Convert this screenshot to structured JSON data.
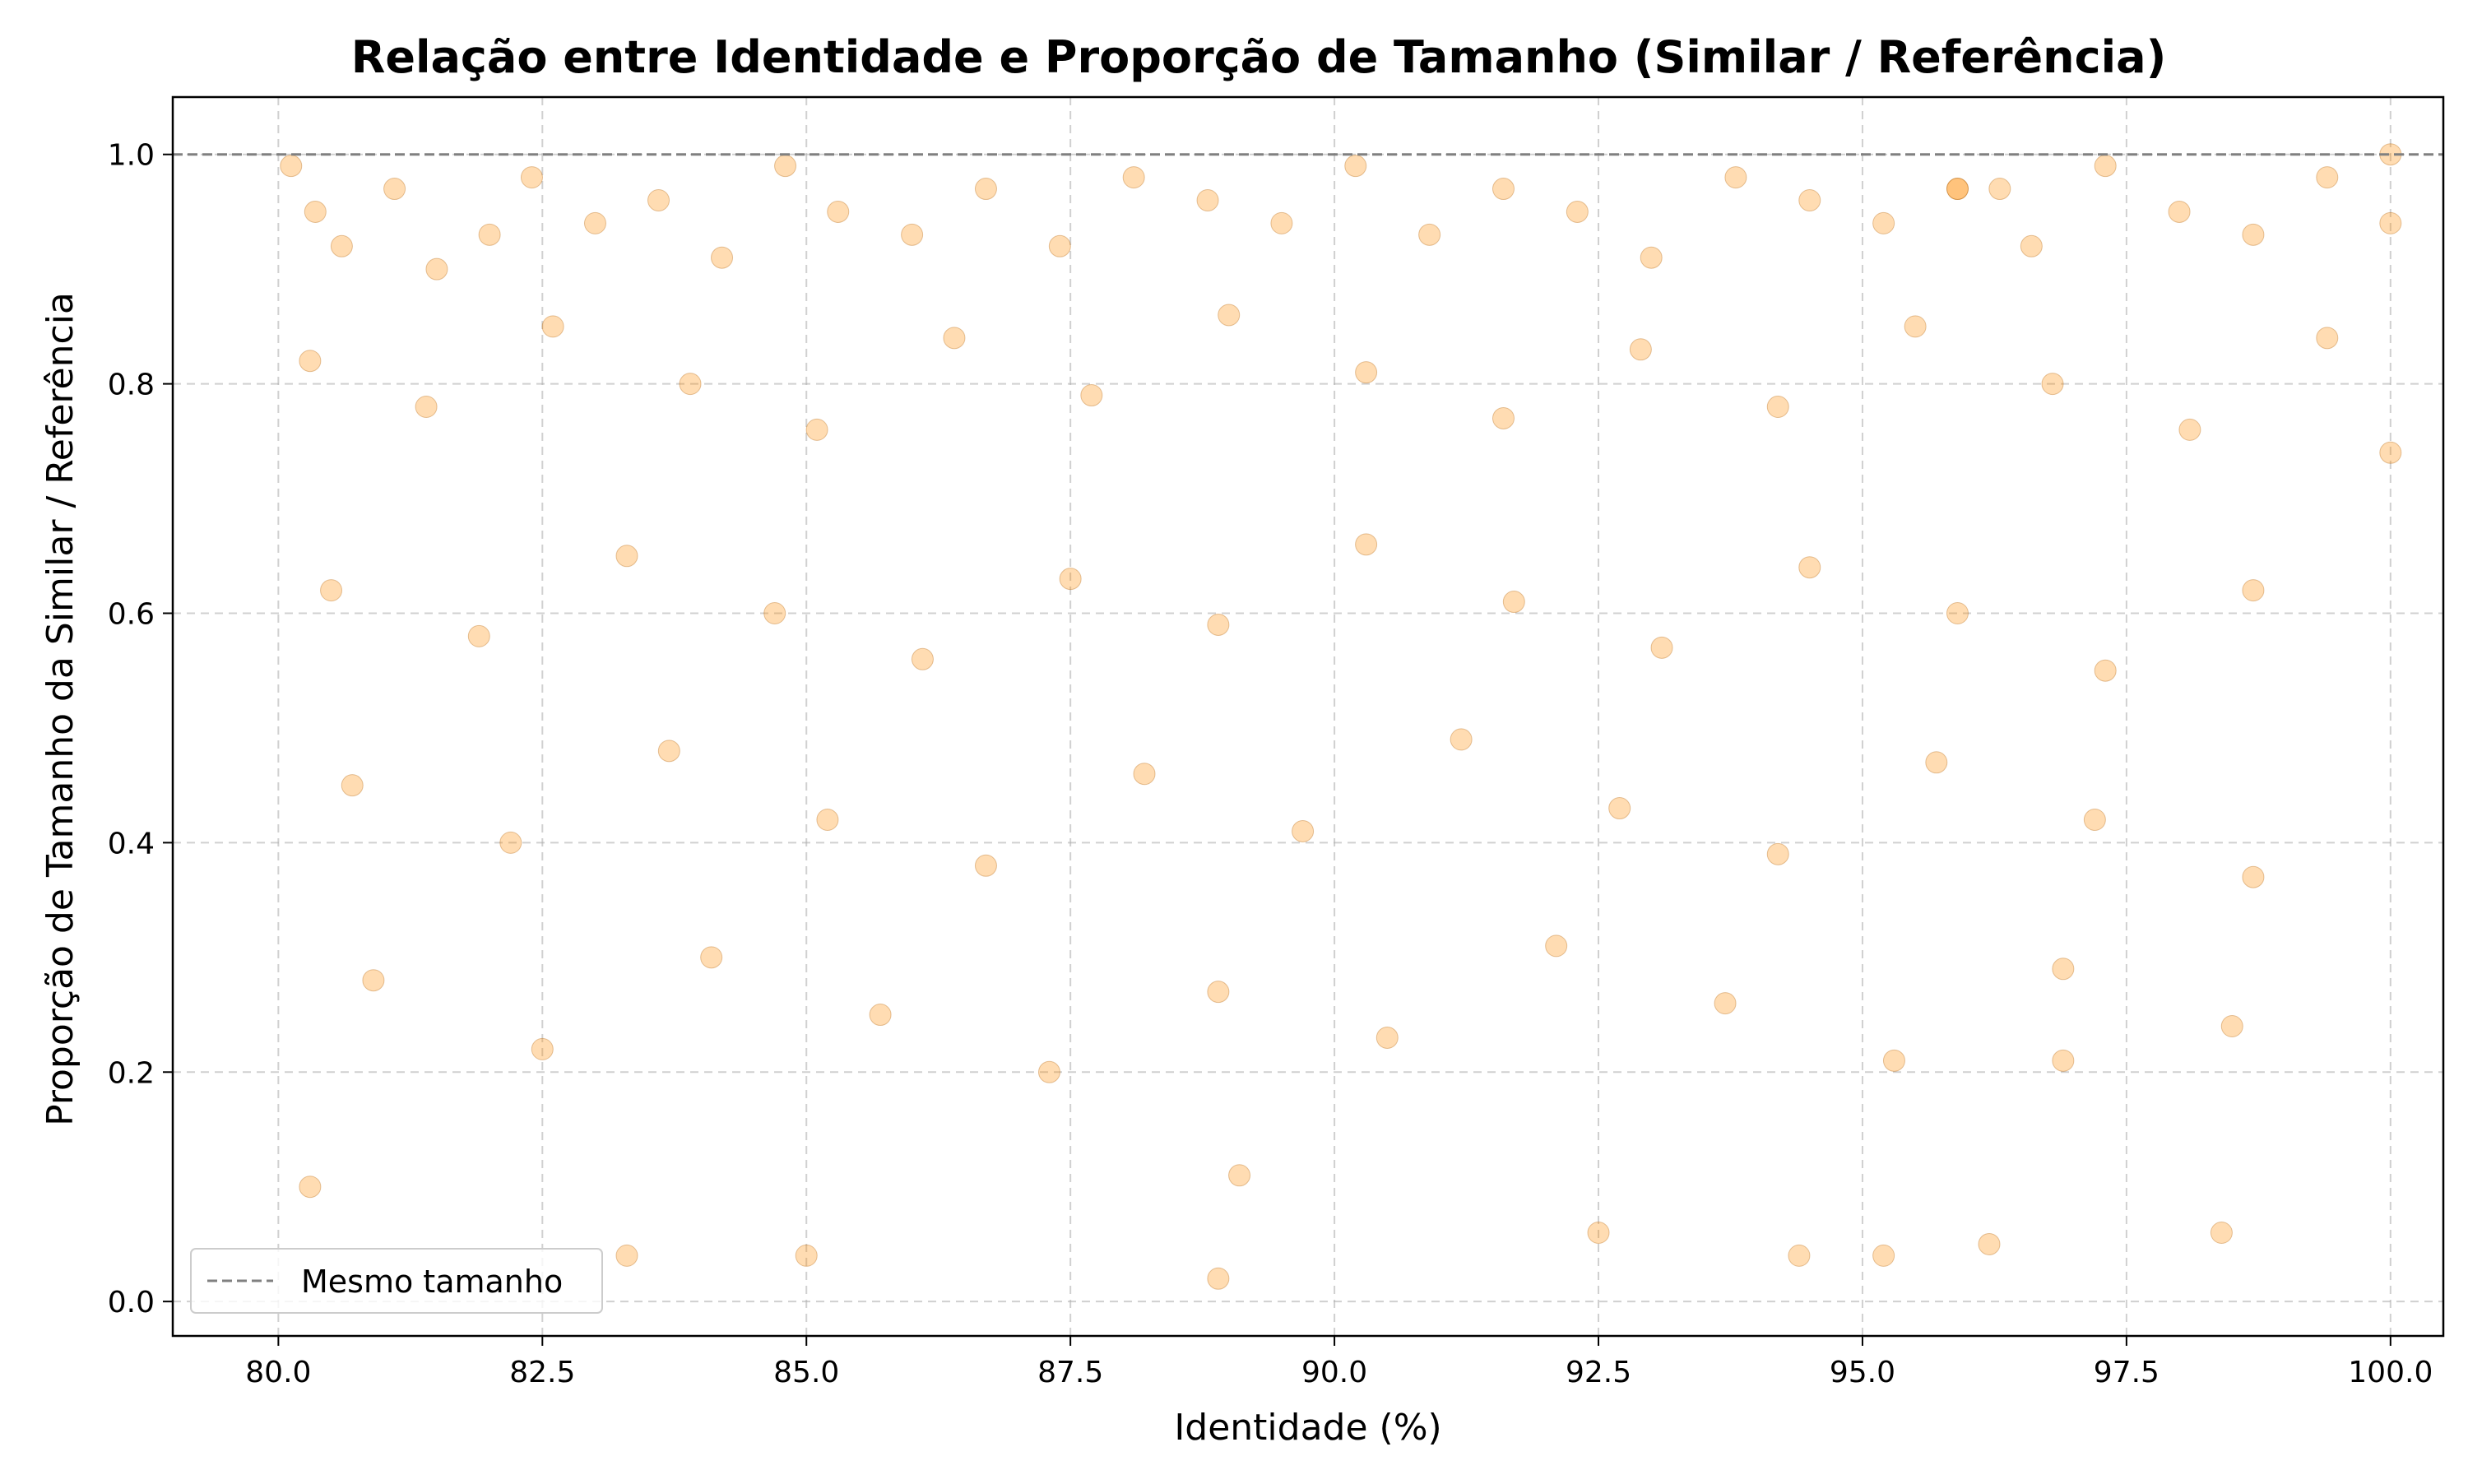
{
  "chart_data": {
    "type": "scatter",
    "title": "Relação entre Identidade e Proporção de Tamanho (Similar / Referência)",
    "xlabel": "Identidade (%)",
    "ylabel": "Proporção de Tamanho da Similar / Referência",
    "xlim": [
      79.0,
      100.5
    ],
    "ylim": [
      -0.03,
      1.05
    ],
    "x_ticks": [
      "80.0",
      "82.5",
      "85.0",
      "87.5",
      "90.0",
      "92.5",
      "95.0",
      "97.5",
      "100.0"
    ],
    "y_ticks": [
      "0.0",
      "0.2",
      "0.4",
      "0.6",
      "0.8",
      "1.0"
    ],
    "grid": true,
    "legend": {
      "position": "bottom-left",
      "entries": [
        "Mesmo tamanho"
      ]
    },
    "reference_line": {
      "name": "Mesmo tamanho",
      "y": 1.0,
      "style": "dashed",
      "color": "#808080"
    },
    "marker_color": "#ff8c00",
    "marker_alpha": 0.3,
    "series": [
      {
        "name": "",
        "points": [
          [
            80.12,
            0.99
          ],
          [
            80.35,
            0.95
          ],
          [
            80.6,
            0.92
          ],
          [
            81.1,
            0.97
          ],
          [
            81.5,
            0.9
          ],
          [
            82.0,
            0.93
          ],
          [
            82.4,
            0.98
          ],
          [
            83.0,
            0.94
          ],
          [
            83.6,
            0.96
          ],
          [
            84.2,
            0.91
          ],
          [
            84.8,
            0.99
          ],
          [
            85.3,
            0.95
          ],
          [
            86.0,
            0.93
          ],
          [
            86.7,
            0.97
          ],
          [
            87.4,
            0.92
          ],
          [
            88.1,
            0.98
          ],
          [
            88.8,
            0.96
          ],
          [
            89.5,
            0.94
          ],
          [
            90.2,
            0.99
          ],
          [
            90.9,
            0.93
          ],
          [
            91.6,
            0.97
          ],
          [
            92.3,
            0.95
          ],
          [
            93.0,
            0.91
          ],
          [
            93.8,
            0.98
          ],
          [
            94.5,
            0.96
          ],
          [
            95.2,
            0.94
          ],
          [
            95.9,
            0.97
          ],
          [
            96.6,
            0.92
          ],
          [
            97.3,
            0.99
          ],
          [
            98.0,
            0.95
          ],
          [
            98.7,
            0.93
          ],
          [
            99.4,
            0.98
          ],
          [
            100.0,
            1.0
          ],
          [
            100.0,
            0.94
          ],
          [
            100.0,
            0.74
          ],
          [
            80.3,
            0.82
          ],
          [
            81.4,
            0.78
          ],
          [
            82.6,
            0.85
          ],
          [
            83.9,
            0.8
          ],
          [
            85.1,
            0.76
          ],
          [
            86.4,
            0.84
          ],
          [
            87.7,
            0.79
          ],
          [
            89.0,
            0.86
          ],
          [
            90.3,
            0.81
          ],
          [
            91.6,
            0.77
          ],
          [
            92.9,
            0.83
          ],
          [
            94.2,
            0.78
          ],
          [
            95.5,
            0.85
          ],
          [
            96.8,
            0.8
          ],
          [
            98.1,
            0.76
          ],
          [
            99.4,
            0.84
          ],
          [
            80.5,
            0.62
          ],
          [
            81.9,
            0.58
          ],
          [
            83.3,
            0.65
          ],
          [
            84.7,
            0.6
          ],
          [
            86.1,
            0.56
          ],
          [
            87.5,
            0.63
          ],
          [
            88.9,
            0.59
          ],
          [
            90.3,
            0.66
          ],
          [
            91.7,
            0.61
          ],
          [
            93.1,
            0.57
          ],
          [
            94.5,
            0.64
          ],
          [
            95.9,
            0.6
          ],
          [
            97.3,
            0.55
          ],
          [
            98.7,
            0.62
          ],
          [
            80.7,
            0.45
          ],
          [
            82.2,
            0.4
          ],
          [
            83.7,
            0.48
          ],
          [
            85.2,
            0.42
          ],
          [
            86.7,
            0.38
          ],
          [
            88.2,
            0.46
          ],
          [
            89.7,
            0.41
          ],
          [
            91.2,
            0.49
          ],
          [
            92.7,
            0.43
          ],
          [
            94.2,
            0.39
          ],
          [
            95.7,
            0.47
          ],
          [
            97.2,
            0.42
          ],
          [
            98.7,
            0.37
          ],
          [
            80.9,
            0.28
          ],
          [
            82.5,
            0.22
          ],
          [
            84.1,
            0.3
          ],
          [
            85.7,
            0.25
          ],
          [
            87.3,
            0.2
          ],
          [
            88.9,
            0.27
          ],
          [
            90.5,
            0.23
          ],
          [
            92.1,
            0.31
          ],
          [
            93.7,
            0.26
          ],
          [
            95.3,
            0.21
          ],
          [
            96.9,
            0.29
          ],
          [
            98.5,
            0.24
          ],
          [
            80.3,
            0.1
          ],
          [
            83.3,
            0.04
          ],
          [
            85.0,
            0.04
          ],
          [
            88.9,
            0.02
          ],
          [
            92.5,
            0.06
          ],
          [
            94.4,
            0.04
          ],
          [
            95.2,
            0.04
          ],
          [
            96.2,
            0.05
          ],
          [
            98.4,
            0.06
          ],
          [
            89.1,
            0.11
          ],
          [
            96.9,
            0.21
          ],
          [
            95.9,
            0.97
          ],
          [
            96.3,
            0.97
          ]
        ]
      }
    ]
  }
}
